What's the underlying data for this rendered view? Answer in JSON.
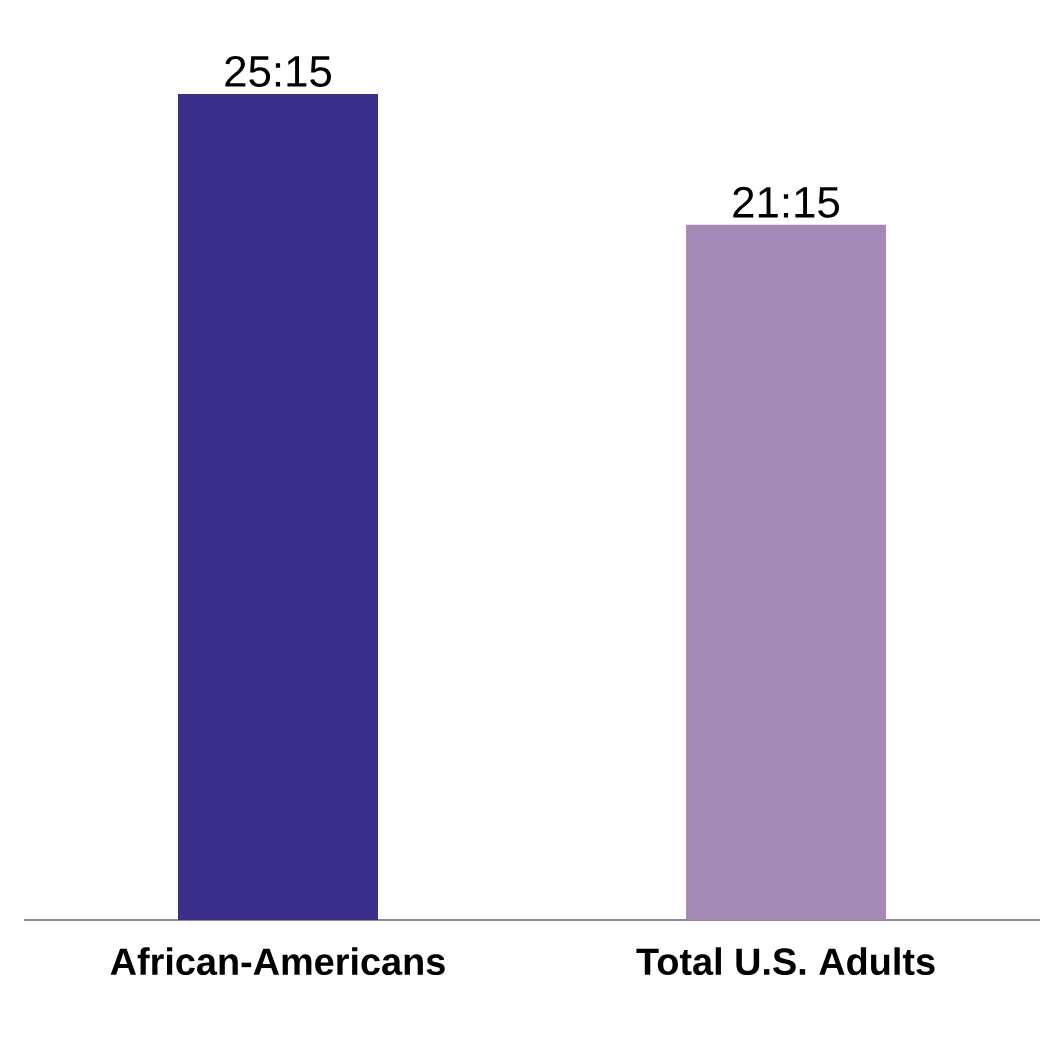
{
  "chart_data": {
    "type": "bar",
    "categories": [
      "African-Americans",
      "Total U.S. Adults"
    ],
    "values": [
      25.25,
      21.25
    ],
    "value_labels": [
      "25:15",
      "21:15"
    ],
    "colors": [
      "#3b2f8c",
      "#a58ab8"
    ]
  }
}
